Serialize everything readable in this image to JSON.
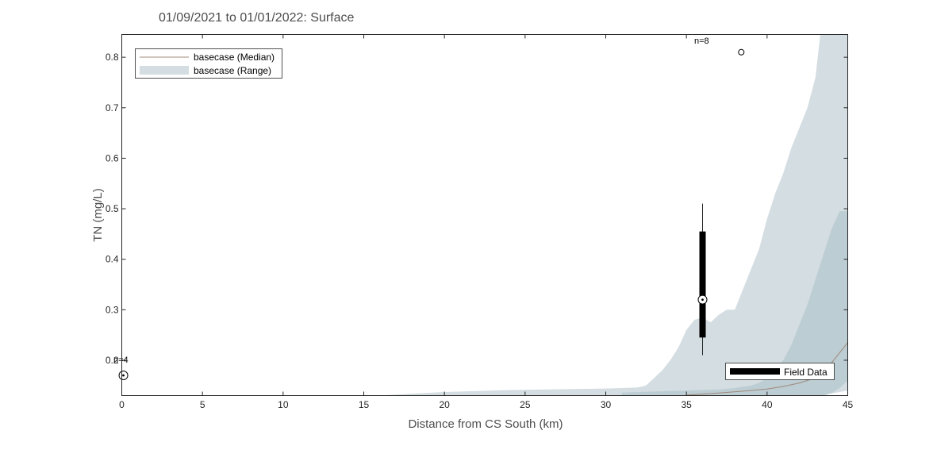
{
  "chart_data": {
    "type": "area",
    "title": "01/09/2021 to 01/01/2022: Surface",
    "xlabel": "Distance from CS South (km)",
    "ylabel": "TN (mg/L)",
    "xlim": [
      0,
      45
    ],
    "ylim": [
      0.13,
      0.845
    ],
    "x_ticks": [
      0,
      5,
      10,
      15,
      20,
      25,
      30,
      35,
      40,
      45
    ],
    "y_ticks": [
      0.2,
      0.3,
      0.4,
      0.5,
      0.6,
      0.7,
      0.8
    ],
    "grid": false,
    "legend": {
      "placement": "top-left",
      "entries": [
        "basecase (Median)",
        "basecase (Range)"
      ]
    },
    "field_legend": {
      "placement": "bottom-right",
      "label": "Field Data"
    },
    "colors": {
      "range_outer": "#d4dde1",
      "range_inner": "#bccdd3",
      "median": "#a08878",
      "field": "#000000"
    },
    "series": [
      {
        "name": "basecase (Median)",
        "x": [
          35.0,
          37.0,
          39.0,
          40.0,
          41.0,
          42.0,
          43.0,
          43.5,
          44.0,
          44.5,
          45.0
        ],
        "y": [
          0.131,
          0.135,
          0.14,
          0.143,
          0.148,
          0.155,
          0.165,
          0.178,
          0.195,
          0.215,
          0.235
        ]
      },
      {
        "name": "basecase (Range)",
        "x": [
          16.0,
          18.0,
          20.0,
          22.0,
          24.0,
          26.0,
          28.0,
          30.0,
          31.0,
          32.0,
          32.5,
          33.0,
          33.5,
          34.0,
          34.5,
          35.0,
          35.5,
          36.0,
          36.5,
          37.0,
          37.5,
          38.0,
          38.5,
          39.0,
          39.5,
          40.0,
          40.5,
          41.0,
          41.5,
          42.0,
          42.5,
          43.0,
          43.3,
          45.0
        ],
        "upper": [
          0.13,
          0.134,
          0.137,
          0.139,
          0.141,
          0.142,
          0.143,
          0.144,
          0.145,
          0.146,
          0.15,
          0.165,
          0.18,
          0.2,
          0.225,
          0.26,
          0.28,
          0.285,
          0.275,
          0.29,
          0.3,
          0.3,
          0.34,
          0.38,
          0.42,
          0.48,
          0.53,
          0.57,
          0.62,
          0.66,
          0.7,
          0.76,
          0.845,
          0.845
        ],
        "lower": [
          0.13,
          0.13,
          0.13,
          0.13,
          0.13,
          0.13,
          0.13,
          0.13,
          0.13,
          0.13,
          0.13,
          0.13,
          0.13,
          0.13,
          0.13,
          0.13,
          0.13,
          0.13,
          0.13,
          0.13,
          0.13,
          0.13,
          0.13,
          0.13,
          0.13,
          0.13,
          0.13,
          0.13,
          0.13,
          0.13,
          0.13,
          0.13,
          0.13,
          0.14
        ]
      },
      {
        "name": "",
        "x": [
          31.0,
          33.0,
          35.0,
          37.0,
          38.0,
          39.0,
          39.5,
          40.0,
          40.5,
          41.0,
          41.5,
          42.0,
          42.5,
          43.0,
          43.5,
          44.0,
          44.5,
          45.0
        ],
        "upper": [
          0.136,
          0.138,
          0.14,
          0.142,
          0.145,
          0.15,
          0.155,
          0.165,
          0.18,
          0.2,
          0.23,
          0.27,
          0.31,
          0.36,
          0.41,
          0.46,
          0.495,
          0.495
        ],
        "lower": [
          0.13,
          0.13,
          0.13,
          0.13,
          0.13,
          0.13,
          0.13,
          0.13,
          0.13,
          0.13,
          0.13,
          0.13,
          0.13,
          0.13,
          0.13,
          0.135,
          0.145,
          0.16
        ]
      }
    ],
    "field_data": [
      {
        "x": 0.1,
        "median": 0.17,
        "n_label": "n=4",
        "outlier_label": "0.2"
      },
      {
        "x": 36.0,
        "median": 0.32,
        "q1": 0.245,
        "q3": 0.455,
        "min": 0.21,
        "max": 0.51,
        "outlier_x": 38.4,
        "outlier_y": 0.81,
        "n_label": "n=8"
      }
    ]
  }
}
